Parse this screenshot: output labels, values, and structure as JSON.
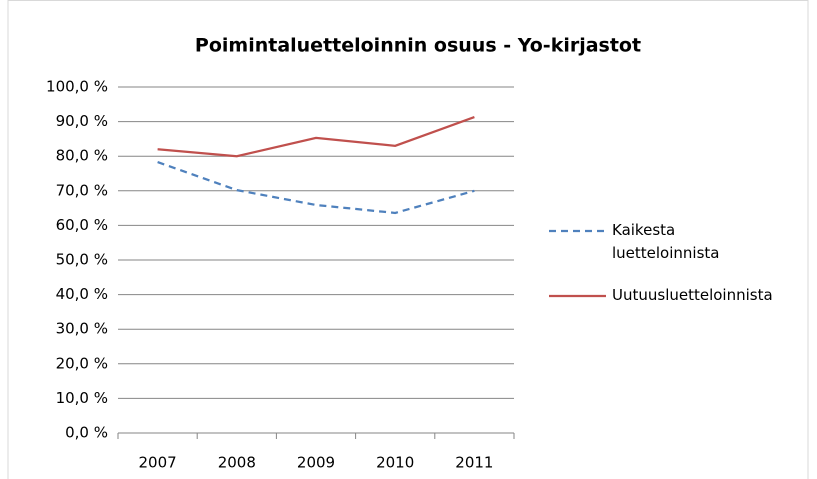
{
  "chart_data": {
    "type": "line",
    "title": "Poimintaluetteloinnin osuus - Yo-kirjastot",
    "categories": [
      "2007",
      "2008",
      "2009",
      "2010",
      "2011"
    ],
    "series": [
      {
        "name": "Kaikesta luetteloinnista",
        "color": "#4f81bd",
        "dashed": true,
        "values": [
          78.3,
          70.2,
          65.9,
          63.6,
          70.0
        ]
      },
      {
        "name": "Uutuusluetteloinnista",
        "color": "#c0504d",
        "dashed": false,
        "values": [
          82.0,
          80.0,
          85.3,
          83.0,
          91.3
        ]
      }
    ],
    "ylim": [
      0,
      100
    ],
    "yticks": [
      {
        "value": 0,
        "label": "0,0 %"
      },
      {
        "value": 10,
        "label": "10,0 %"
      },
      {
        "value": 20,
        "label": "20,0 %"
      },
      {
        "value": 30,
        "label": "30,0 %"
      },
      {
        "value": 40,
        "label": "40,0 %"
      },
      {
        "value": 50,
        "label": "50,0 %"
      },
      {
        "value": 60,
        "label": "60,0 %"
      },
      {
        "value": 70,
        "label": "70,0 %"
      },
      {
        "value": 80,
        "label": "80,0 %"
      },
      {
        "value": 90,
        "label": "90,0 %"
      },
      {
        "value": 100,
        "label": "100,0 %"
      }
    ],
    "grid": true,
    "legend": "right"
  }
}
